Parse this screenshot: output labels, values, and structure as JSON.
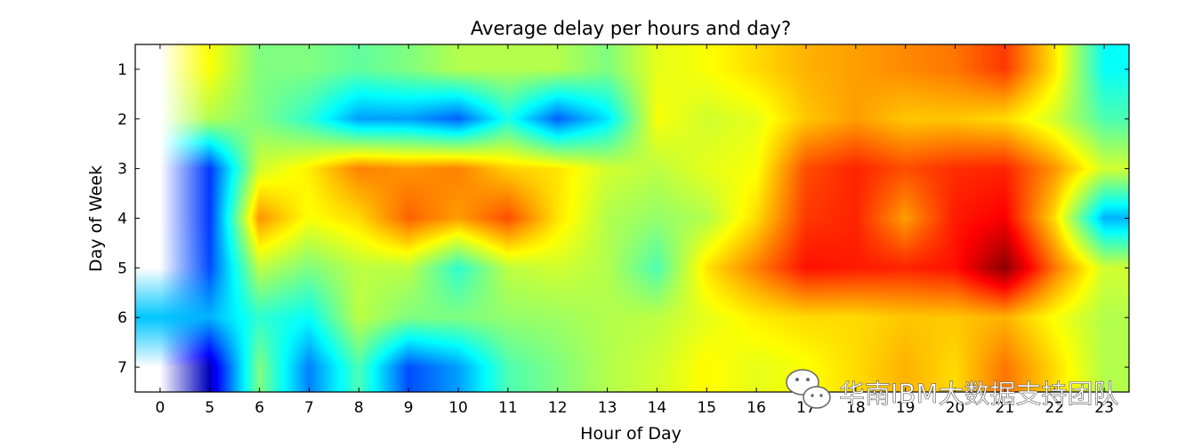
{
  "chart_data": {
    "type": "heatmap",
    "title": "Average delay per hours and day?",
    "xlabel": "Hour of Day",
    "ylabel": "Day of Week",
    "x": [
      0,
      5,
      6,
      7,
      8,
      9,
      10,
      11,
      12,
      13,
      14,
      15,
      16,
      17,
      18,
      19,
      20,
      21,
      22,
      23
    ],
    "y": [
      1,
      2,
      3,
      4,
      5,
      6,
      7
    ],
    "x_tick_labels": [
      "0",
      "5",
      "6",
      "7",
      "8",
      "9",
      "10",
      "11",
      "12",
      "13",
      "14",
      "15",
      "16",
      "17",
      "18",
      "19",
      "20",
      "21",
      "22",
      "23"
    ],
    "y_tick_labels": [
      "1",
      "2",
      "3",
      "4",
      "5",
      "6",
      "7"
    ],
    "colormap": "jet",
    "interpolation": "bilinear",
    "value_range": [
      0,
      1
    ],
    "missing_color": "#ffffff",
    "z": [
      [
        null,
        0.62,
        0.5,
        0.5,
        0.47,
        0.5,
        0.55,
        0.55,
        0.55,
        0.5,
        0.6,
        0.62,
        0.66,
        0.7,
        0.72,
        0.74,
        0.76,
        0.82,
        0.65,
        0.38
      ],
      [
        null,
        0.55,
        0.5,
        0.42,
        0.28,
        0.28,
        0.22,
        0.4,
        0.22,
        0.35,
        0.62,
        0.58,
        0.6,
        0.68,
        0.72,
        0.68,
        0.68,
        0.66,
        0.58,
        0.45
      ],
      [
        null,
        0.18,
        0.58,
        0.64,
        0.75,
        0.73,
        0.75,
        0.67,
        0.65,
        0.58,
        0.56,
        0.6,
        0.62,
        0.8,
        0.84,
        0.8,
        0.83,
        0.84,
        0.73,
        0.58
      ],
      [
        null,
        0.18,
        0.73,
        0.62,
        0.66,
        0.78,
        0.72,
        0.8,
        0.65,
        0.55,
        0.52,
        0.55,
        0.66,
        0.82,
        0.84,
        0.72,
        0.85,
        0.88,
        0.66,
        0.3
      ],
      [
        null,
        0.2,
        0.56,
        0.5,
        0.56,
        0.56,
        0.42,
        0.56,
        0.58,
        0.55,
        0.45,
        0.65,
        0.75,
        0.86,
        0.85,
        0.84,
        0.86,
        0.99,
        0.76,
        0.58
      ],
      [
        0.32,
        0.3,
        0.42,
        0.38,
        0.56,
        0.5,
        0.5,
        0.52,
        0.53,
        0.55,
        0.56,
        0.6,
        0.64,
        0.66,
        0.66,
        0.68,
        0.68,
        0.7,
        0.62,
        0.55
      ],
      [
        null,
        0.06,
        0.5,
        0.25,
        0.45,
        0.2,
        0.28,
        0.45,
        0.5,
        0.55,
        0.58,
        0.63,
        0.6,
        0.62,
        0.66,
        0.7,
        0.66,
        0.76,
        0.66,
        0.55
      ]
    ]
  },
  "watermark": {
    "icon": "wechat-icon",
    "text": "华南IBM大数据支持团队"
  }
}
